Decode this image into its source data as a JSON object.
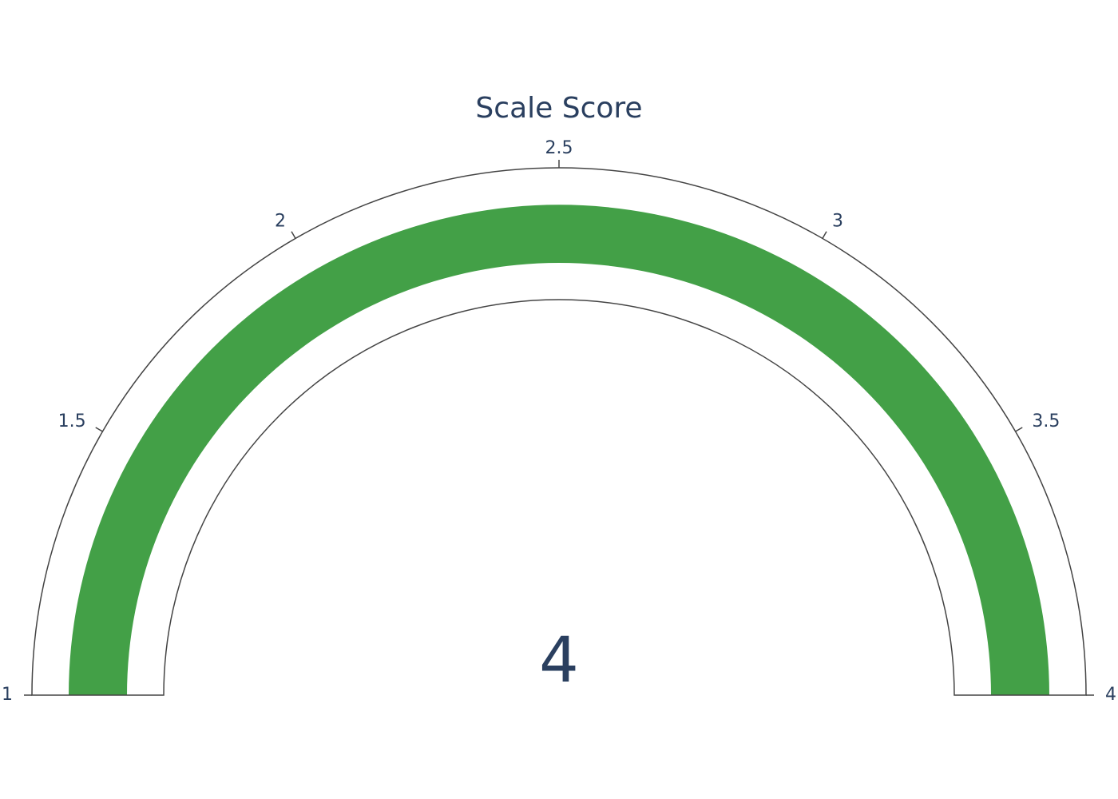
{
  "chart_data": {
    "type": "gauge",
    "title": "Scale Score",
    "value": 4,
    "value_label": "4",
    "range": [
      1,
      4
    ],
    "ticks": [
      1,
      1.5,
      2,
      2.5,
      3,
      3.5,
      4
    ],
    "tick_labels": [
      "1",
      "1.5",
      "2",
      "2.5",
      "3",
      "3.5",
      "4"
    ],
    "grid": false,
    "legend": "none"
  },
  "colors": {
    "bar": "#43a047",
    "text": "#2a3f5f",
    "outline": "#444444",
    "background": "#ffffff"
  }
}
